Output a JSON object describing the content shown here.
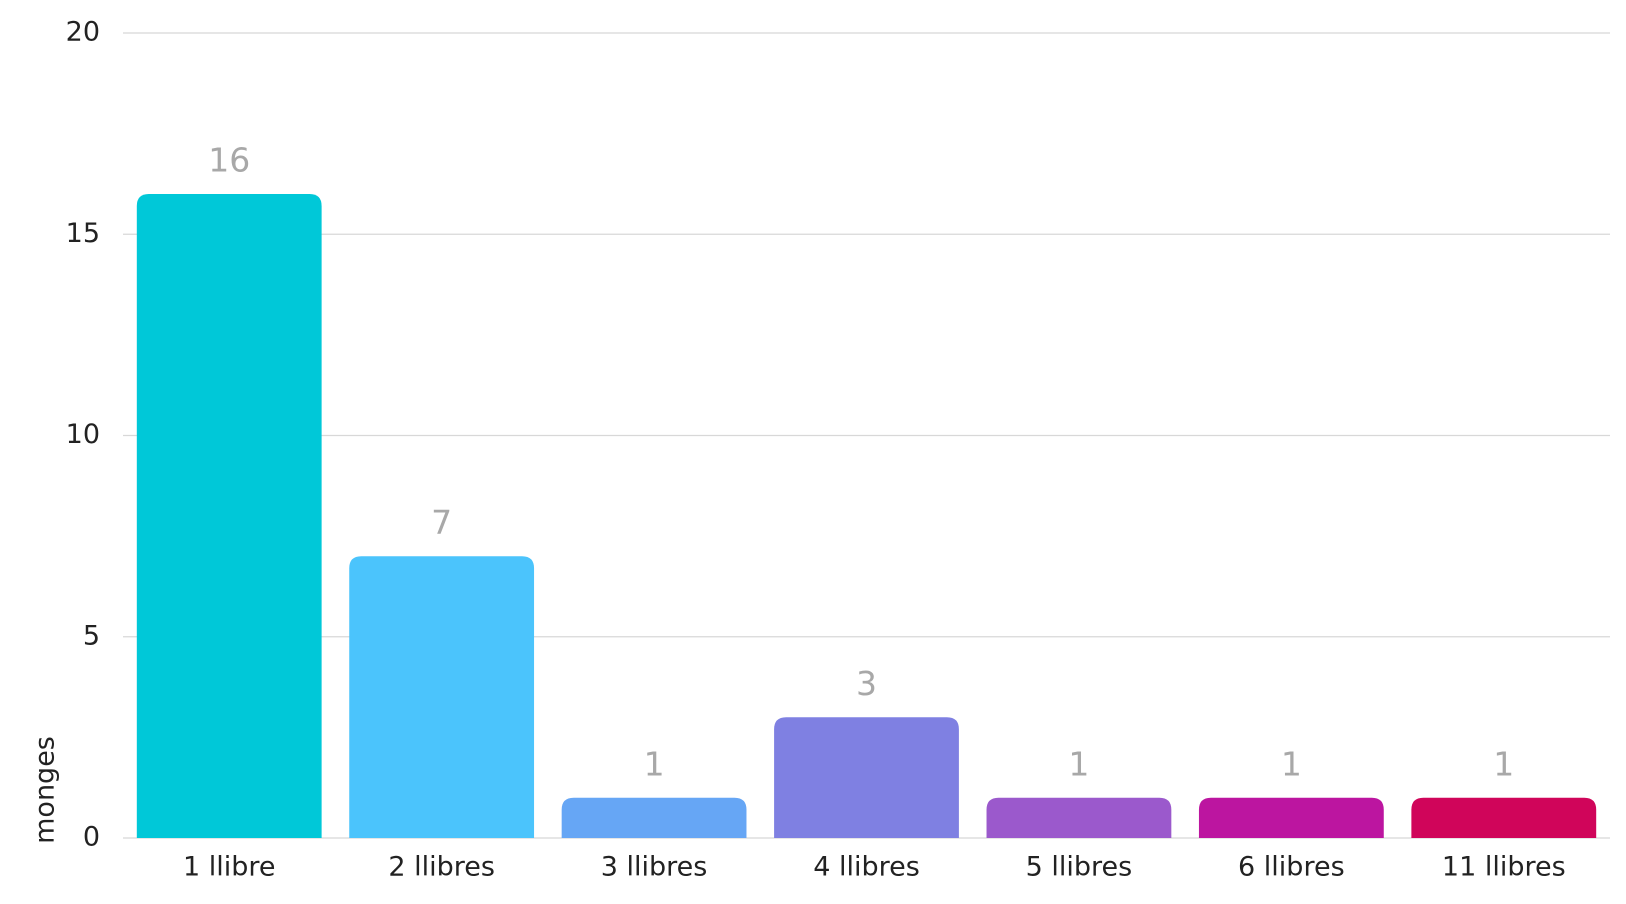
{
  "chart_data": {
    "type": "bar",
    "y_label": "monges",
    "categories": [
      "1 llibre",
      "2 llibres",
      "3 llibres",
      "4 llibres",
      "5 llibres",
      "6 llibres",
      "11 llibres"
    ],
    "values": [
      16,
      7,
      1,
      3,
      1,
      1,
      1
    ],
    "colors": [
      "#00c8d8",
      "#4bc4fc",
      "#66a6f5",
      "#7f80e2",
      "#9b59cc",
      "#bc15a0",
      "#d0055a"
    ],
    "ylim": [
      0,
      20
    ],
    "yticks": [
      0,
      5,
      10,
      15,
      20
    ],
    "grid": true
  }
}
